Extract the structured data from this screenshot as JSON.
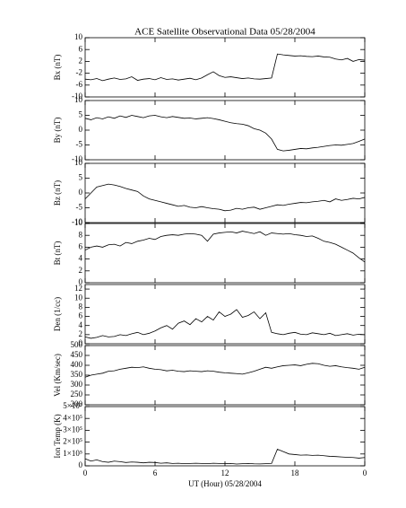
{
  "title": "ACE Satellite Observational Data   05/28/2004",
  "xlabel": "UT (Hour)   05/28/2004",
  "xlim": [
    0,
    24
  ],
  "xticks": [
    0,
    6,
    12,
    18,
    {
      "value": 24,
      "label": "0"
    }
  ],
  "x": [
    0,
    0.5,
    1,
    1.5,
    2,
    2.5,
    3,
    3.5,
    4,
    4.5,
    5,
    5.5,
    6,
    6.5,
    7,
    7.5,
    8,
    8.5,
    9,
    9.5,
    10,
    10.5,
    11,
    11.5,
    12,
    12.5,
    13,
    13.5,
    14,
    14.5,
    15,
    15.5,
    16,
    16.5,
    17,
    17.5,
    18,
    18.5,
    19,
    19.5,
    20,
    20.5,
    21,
    21.5,
    22,
    22.5,
    23,
    23.5,
    24
  ],
  "chart_data": [
    {
      "type": "line",
      "ylabel": "Bx (nT)",
      "color": "#000000",
      "ylim": [
        -10,
        10
      ],
      "yticks": [
        -10,
        -6,
        -2,
        2,
        6,
        10
      ],
      "values": [
        -4,
        -4.2,
        -3.8,
        -4.5,
        -4,
        -3.6,
        -4.1,
        -3.9,
        -3.2,
        -4.4,
        -4,
        -3.8,
        -4.2,
        -3.5,
        -4.1,
        -3.9,
        -4.3,
        -4,
        -3.7,
        -4.2,
        -3.6,
        -2.5,
        -1.5,
        -2.8,
        -3.4,
        -3.2,
        -3.5,
        -3.8,
        -3.6,
        -3.9,
        -4,
        -3.8,
        -3.6,
        4.5,
        4.2,
        4,
        3.8,
        3.9,
        3.7,
        3.6,
        3.8,
        3.5,
        3.4,
        2.8,
        2.5,
        3,
        2,
        2.6,
        2.4
      ]
    },
    {
      "type": "line",
      "ylabel": "By (nT)",
      "color": "#000000",
      "ylim": [
        -10,
        10
      ],
      "yticks": [
        -10,
        -5,
        0,
        5,
        10
      ],
      "values": [
        4,
        3.5,
        4.2,
        3.8,
        4.5,
        4,
        4.8,
        4.3,
        5,
        4.6,
        4.2,
        4.8,
        5,
        4.5,
        4.2,
        4.6,
        4.3,
        4,
        4.1,
        3.8,
        4,
        4.2,
        3.9,
        3.5,
        3,
        2.5,
        2.2,
        2,
        1.5,
        0.5,
        0,
        -1,
        -3,
        -6.5,
        -7,
        -6.8,
        -6.5,
        -6.2,
        -6.3,
        -6,
        -5.8,
        -5.5,
        -5.2,
        -5,
        -5.1,
        -4.8,
        -4.5,
        -3.8,
        -3
      ]
    },
    {
      "type": "line",
      "ylabel": "Bz (nT)",
      "color": "#000000",
      "ylim": [
        -10,
        10
      ],
      "yticks": [
        -10,
        -5,
        0,
        5,
        10
      ],
      "values": [
        -2,
        0,
        2,
        2.5,
        3,
        2.7,
        2.2,
        1.5,
        1,
        0.5,
        -1,
        -2,
        -2.5,
        -3,
        -3.5,
        -4,
        -4.5,
        -4.2,
        -4.8,
        -5,
        -4.6,
        -5,
        -5.3,
        -5.5,
        -6,
        -5.8,
        -5.2,
        -5.5,
        -5,
        -4.8,
        -5.5,
        -5,
        -4.5,
        -4,
        -4.2,
        -3.8,
        -3.5,
        -3.2,
        -3.3,
        -3,
        -2.8,
        -2.5,
        -3,
        -2,
        -2.5,
        -2.2,
        -1.8,
        -2,
        -1.5
      ]
    },
    {
      "type": "line",
      "ylabel": "Bt (nT)",
      "color": "#000000",
      "ylim": [
        0,
        10
      ],
      "yticks": [
        0,
        2,
        4,
        6,
        8,
        10
      ],
      "values": [
        5.5,
        6,
        6.2,
        6,
        6.4,
        6.5,
        6.2,
        6.8,
        6.6,
        7,
        7.2,
        7.5,
        7.3,
        7.8,
        8,
        8.1,
        8,
        8.2,
        8.3,
        8.2,
        8,
        7,
        8.2,
        8.4,
        8.5,
        8.6,
        8.4,
        8.7,
        8.5,
        8.3,
        8.6,
        8,
        8.4,
        8.3,
        8.2,
        8.3,
        8.1,
        8,
        7.8,
        7.9,
        7.5,
        7,
        6.8,
        6.5,
        6,
        5.5,
        5,
        4.2,
        3.5
      ]
    },
    {
      "type": "line",
      "ylabel": "Den (1/cc)",
      "color": "#000000",
      "ylim": [
        0,
        13
      ],
      "yticks": [
        0,
        2,
        4,
        6,
        8,
        10,
        12
      ],
      "values": [
        1.5,
        1.2,
        1.4,
        1.8,
        1.5,
        1.6,
        2,
        1.8,
        2.2,
        2.5,
        2,
        2.3,
        2.8,
        3.5,
        4,
        3.2,
        4.5,
        5,
        4.2,
        5.5,
        4.8,
        6,
        5.2,
        7,
        6,
        6.5,
        7.5,
        5.8,
        6.2,
        7,
        5.5,
        6.8,
        2.5,
        2.2,
        2,
        2.3,
        2.5,
        2.1,
        2,
        2.4,
        2.2,
        2,
        2.3,
        1.8,
        2,
        2.2,
        1.9,
        2.1,
        2
      ]
    },
    {
      "type": "line",
      "ylabel": "Vel (Km/sec)",
      "color": "#000000",
      "ylim": [
        200,
        500
      ],
      "yticks": [
        200,
        250,
        300,
        350,
        400,
        450,
        500
      ],
      "values": [
        340,
        350,
        355,
        360,
        370,
        372,
        380,
        385,
        390,
        388,
        392,
        385,
        380,
        378,
        372,
        375,
        370,
        368,
        372,
        370,
        368,
        372,
        370,
        365,
        362,
        360,
        358,
        355,
        362,
        370,
        380,
        390,
        385,
        392,
        398,
        400,
        402,
        398,
        405,
        410,
        408,
        400,
        395,
        398,
        392,
        388,
        385,
        380,
        390
      ]
    },
    {
      "type": "line",
      "ylabel": "Ion Temp (K)",
      "color": "#000000",
      "ylim": [
        0,
        500000
      ],
      "yticks": [
        0,
        {
          "value": 100000,
          "label": "1×10⁵"
        },
        {
          "value": 200000,
          "label": "2×10⁵"
        },
        {
          "value": 300000,
          "label": "3×10⁵"
        },
        {
          "value": 400000,
          "label": "4×10⁵"
        },
        {
          "value": 500000,
          "label": "5×10⁵"
        }
      ],
      "values": [
        60000,
        40000,
        50000,
        35000,
        30000,
        40000,
        35000,
        28000,
        32000,
        30000,
        25000,
        30000,
        28000,
        22000,
        25000,
        20000,
        22000,
        18000,
        20000,
        22000,
        20000,
        18000,
        22000,
        20000,
        18000,
        20000,
        15000,
        18000,
        20000,
        17000,
        16000,
        18000,
        20000,
        140000,
        120000,
        100000,
        95000,
        90000,
        92000,
        88000,
        90000,
        85000,
        80000,
        78000,
        75000,
        72000,
        70000,
        65000,
        70000
      ]
    }
  ]
}
